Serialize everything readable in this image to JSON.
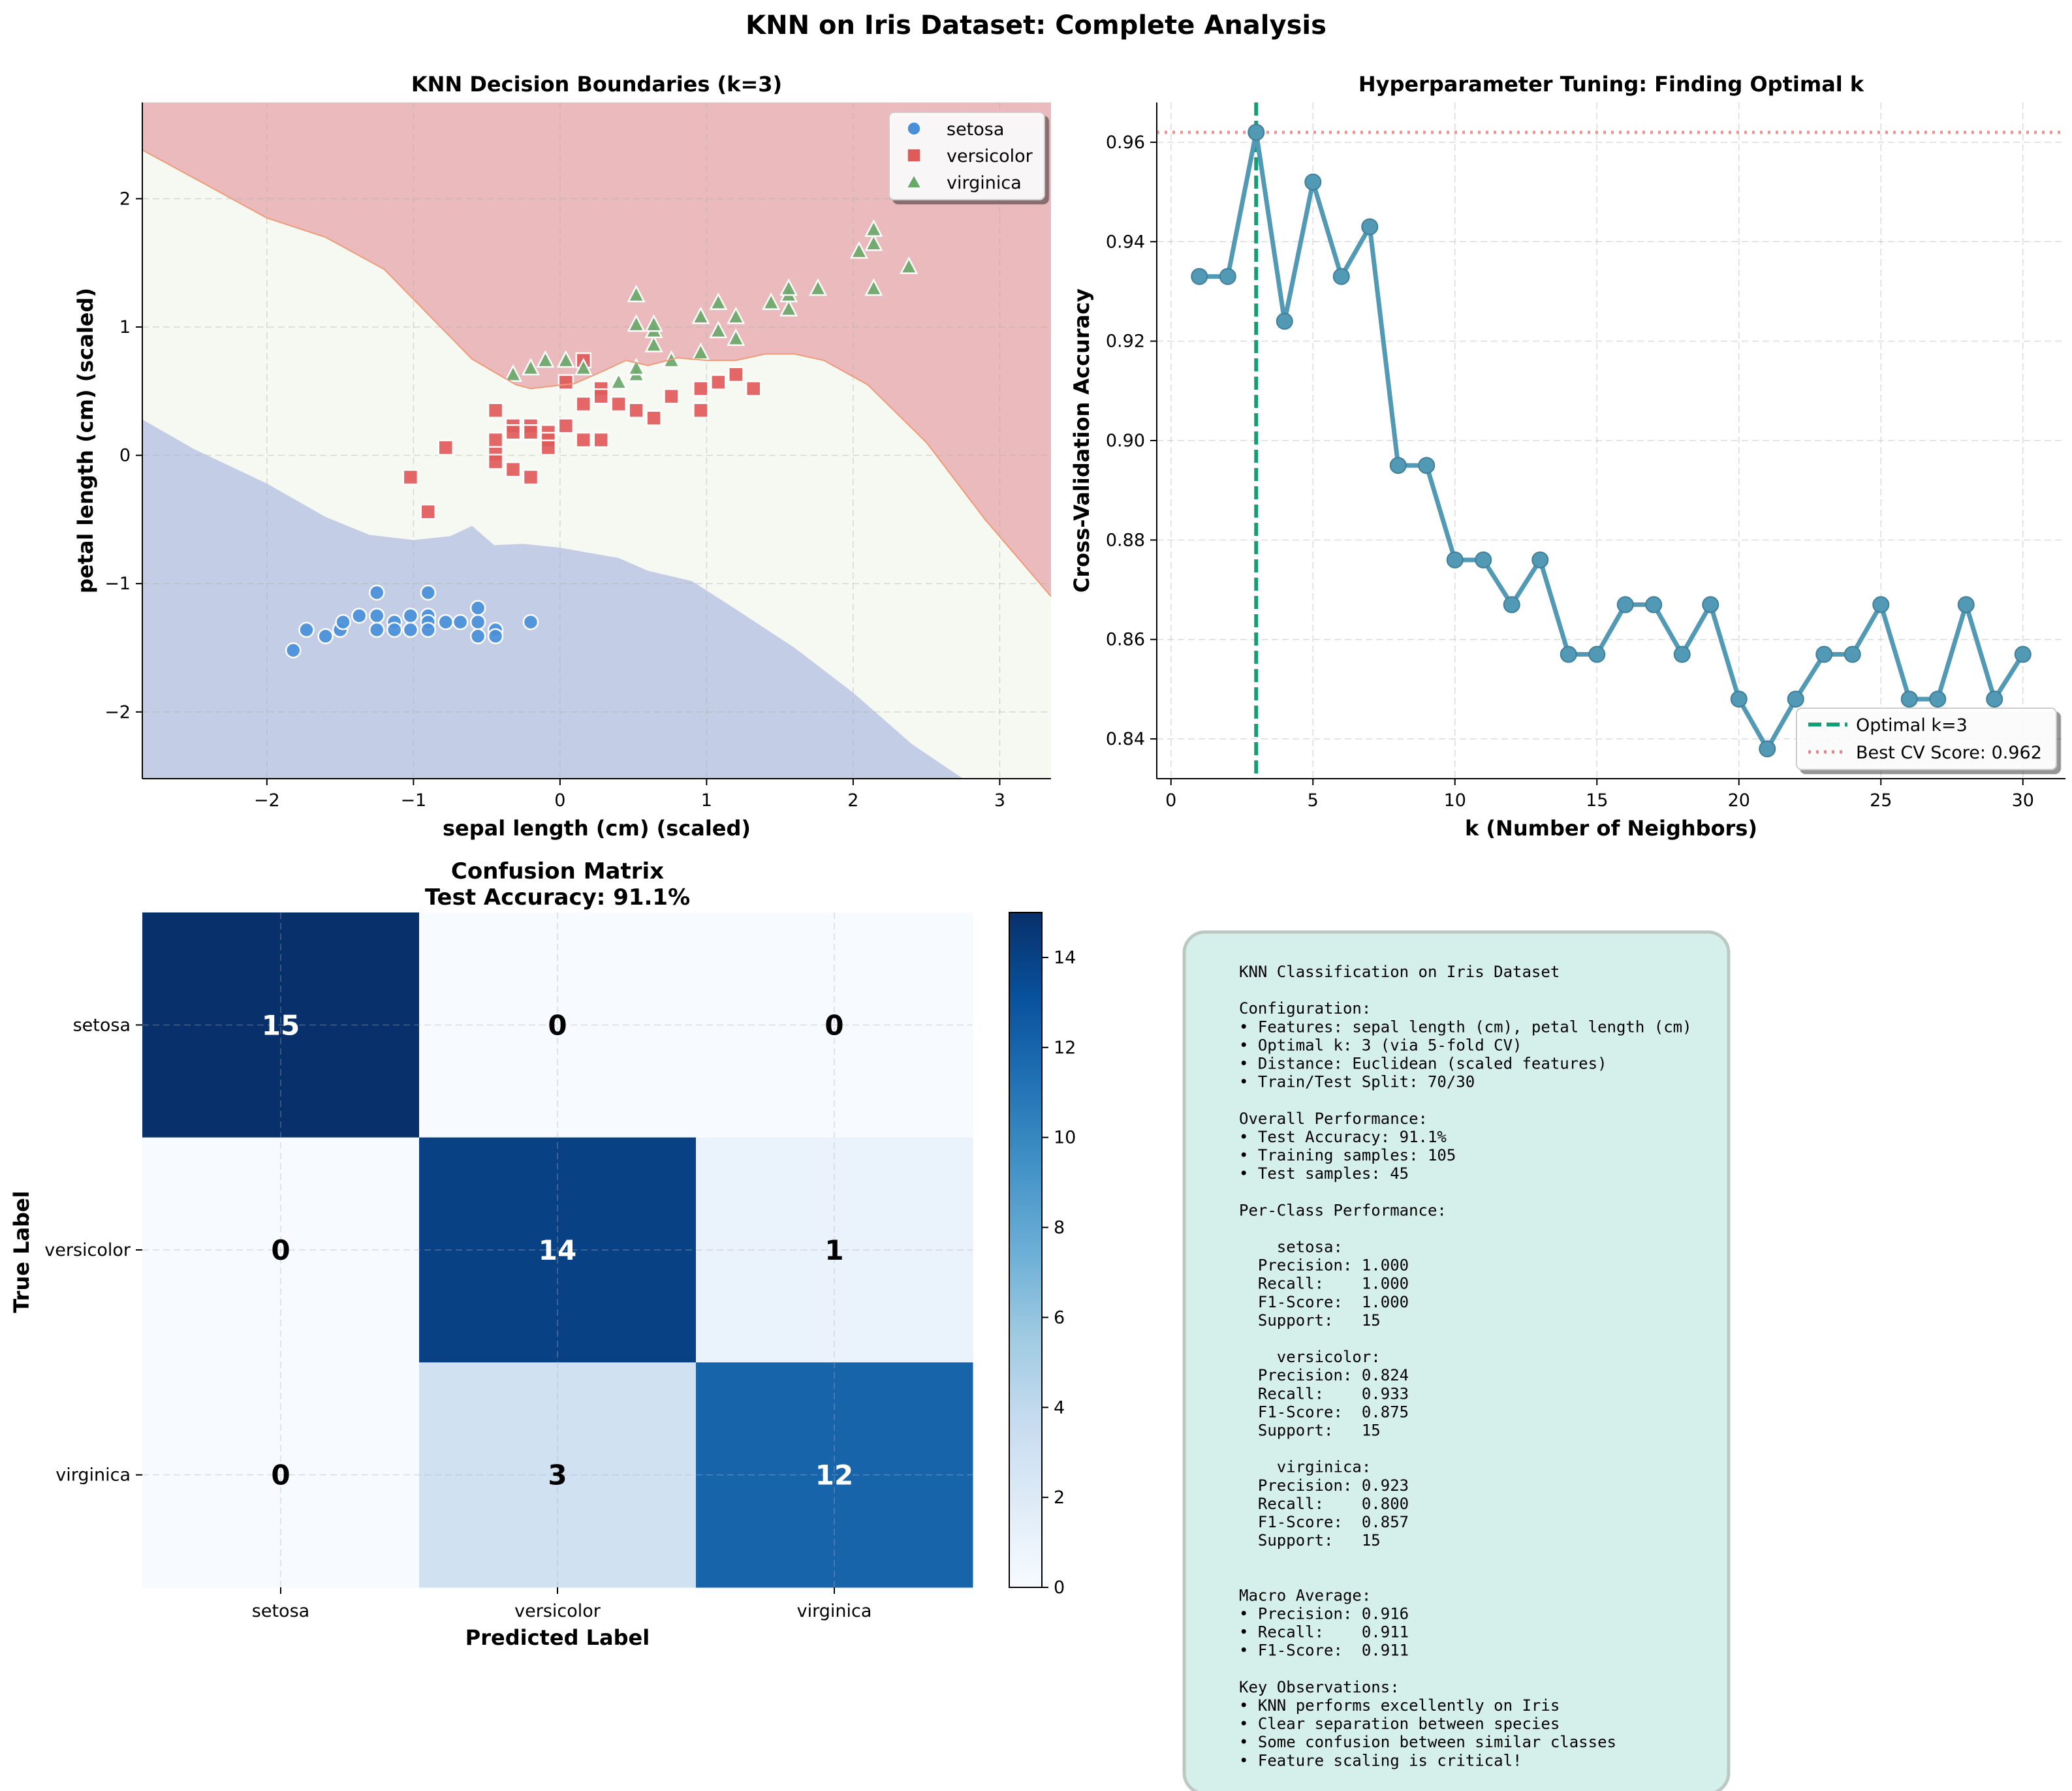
{
  "figure": {
    "title": "KNN on Iris Dataset: Complete Analysis"
  },
  "colors": {
    "setosa": "#4a90d9",
    "versicolor": "#e05a5a",
    "virginica": "#6aa86a",
    "region_setosa": "#c3cde6",
    "region_versicolor": "#f6f9f2",
    "region_virginica": "#ebbabc",
    "cv_line": "#5199b5",
    "optimal_line": "#159e75",
    "best_line": "#e58585",
    "textbox_bg": "#d5f0ea",
    "textbox_border": "#bcc9c3"
  },
  "chart_data": [
    {
      "id": "decision_boundaries",
      "type": "scatter",
      "title": "KNN Decision Boundaries (k=3)",
      "xlabel": "sepal length (cm) (scaled)",
      "ylabel": "petal length (cm) (scaled)",
      "xlim": [
        -2.85,
        3.35
      ],
      "ylim": [
        -2.52,
        2.75
      ],
      "xticks": [
        -2,
        -1,
        0,
        1,
        2,
        3
      ],
      "yticks": [
        -2,
        -1,
        0,
        1,
        2
      ],
      "grid": true,
      "legend_placement": "top-right",
      "regions": {
        "setosa_upper_boundary": [
          [
            -2.85,
            0.28
          ],
          [
            -2.5,
            0.05
          ],
          [
            -2.0,
            -0.22
          ],
          [
            -1.6,
            -0.48
          ],
          [
            -1.3,
            -0.62
          ],
          [
            -1.0,
            -0.66
          ],
          [
            -0.75,
            -0.63
          ],
          [
            -0.6,
            -0.55
          ],
          [
            -0.45,
            -0.7
          ],
          [
            -0.25,
            -0.69
          ],
          [
            0.0,
            -0.72
          ],
          [
            0.4,
            -0.8
          ],
          [
            0.6,
            -0.9
          ],
          [
            0.9,
            -0.98
          ],
          [
            1.2,
            -1.2
          ],
          [
            1.6,
            -1.5
          ],
          [
            2.0,
            -1.85
          ],
          [
            2.4,
            -2.25
          ],
          [
            2.75,
            -2.52
          ]
        ],
        "virginica_lower_boundary": [
          [
            -2.85,
            2.38
          ],
          [
            -2.4,
            2.1
          ],
          [
            -2.0,
            1.85
          ],
          [
            -1.6,
            1.7
          ],
          [
            -1.2,
            1.45
          ],
          [
            -0.9,
            1.1
          ],
          [
            -0.6,
            0.75
          ],
          [
            -0.3,
            0.55
          ],
          [
            -0.2,
            0.52
          ],
          [
            0.1,
            0.56
          ],
          [
            0.3,
            0.66
          ],
          [
            0.45,
            0.74
          ],
          [
            0.6,
            0.7
          ],
          [
            0.8,
            0.76
          ],
          [
            1.0,
            0.74
          ],
          [
            1.2,
            0.74
          ],
          [
            1.4,
            0.79
          ],
          [
            1.6,
            0.79
          ],
          [
            1.8,
            0.74
          ],
          [
            2.1,
            0.55
          ],
          [
            2.5,
            0.1
          ],
          [
            2.9,
            -0.5
          ],
          [
            3.35,
            -1.1
          ]
        ]
      },
      "series": [
        {
          "name": "setosa",
          "marker": "circle",
          "points": [
            [
              -1.82,
              -1.52
            ],
            [
              -1.73,
              -1.36
            ],
            [
              -1.6,
              -1.41
            ],
            [
              -1.5,
              -1.36
            ],
            [
              -1.48,
              -1.3
            ],
            [
              -1.37,
              -1.25
            ],
            [
              -1.25,
              -1.07
            ],
            [
              -1.25,
              -1.25
            ],
            [
              -1.25,
              -1.36
            ],
            [
              -1.13,
              -1.3
            ],
            [
              -1.13,
              -1.36
            ],
            [
              -1.02,
              -1.25
            ],
            [
              -1.02,
              -1.36
            ],
            [
              -0.9,
              -1.07
            ],
            [
              -0.9,
              -1.25
            ],
            [
              -0.9,
              -1.3
            ],
            [
              -0.9,
              -1.36
            ],
            [
              -0.78,
              -1.3
            ],
            [
              -0.68,
              -1.3
            ],
            [
              -0.56,
              -1.19
            ],
            [
              -0.56,
              -1.3
            ],
            [
              -0.56,
              -1.41
            ],
            [
              -0.44,
              -1.36
            ],
            [
              -0.44,
              -1.41
            ],
            [
              -0.2,
              -1.3
            ]
          ]
        },
        {
          "name": "versicolor",
          "marker": "square",
          "points": [
            [
              -1.02,
              -0.17
            ],
            [
              -0.9,
              -0.44
            ],
            [
              -0.78,
              0.06
            ],
            [
              -0.44,
              0.35
            ],
            [
              -0.44,
              0.12
            ],
            [
              -0.44,
              0.01
            ],
            [
              -0.44,
              -0.05
            ],
            [
              -0.32,
              0.23
            ],
            [
              -0.32,
              0.18
            ],
            [
              -0.32,
              -0.11
            ],
            [
              -0.2,
              0.23
            ],
            [
              -0.2,
              0.18
            ],
            [
              -0.2,
              -0.17
            ],
            [
              -0.08,
              0.18
            ],
            [
              -0.08,
              0.12
            ],
            [
              -0.08,
              0.06
            ],
            [
              0.04,
              0.57
            ],
            [
              0.04,
              0.23
            ],
            [
              0.16,
              0.74
            ],
            [
              0.16,
              0.4
            ],
            [
              0.16,
              0.12
            ],
            [
              0.28,
              0.52
            ],
            [
              0.28,
              0.46
            ],
            [
              0.28,
              0.12
            ],
            [
              0.4,
              0.4
            ],
            [
              0.52,
              0.35
            ],
            [
              0.64,
              0.29
            ],
            [
              0.76,
              0.46
            ],
            [
              0.96,
              0.52
            ],
            [
              0.96,
              0.35
            ],
            [
              1.08,
              0.57
            ],
            [
              1.2,
              0.63
            ],
            [
              1.32,
              0.52
            ]
          ]
        },
        {
          "name": "virginica",
          "marker": "triangle",
          "points": [
            [
              -0.32,
              0.63
            ],
            [
              -0.2,
              0.68
            ],
            [
              -0.1,
              0.74
            ],
            [
              0.04,
              0.74
            ],
            [
              0.16,
              0.68
            ],
            [
              0.4,
              0.57
            ],
            [
              0.52,
              0.63
            ],
            [
              0.52,
              0.68
            ],
            [
              0.52,
              1.02
            ],
            [
              0.52,
              1.25
            ],
            [
              0.64,
              0.86
            ],
            [
              0.64,
              0.97
            ],
            [
              0.64,
              1.02
            ],
            [
              0.76,
              0.74
            ],
            [
              0.96,
              0.8
            ],
            [
              0.96,
              1.08
            ],
            [
              1.08,
              0.97
            ],
            [
              1.08,
              1.19
            ],
            [
              1.2,
              0.91
            ],
            [
              1.2,
              1.08
            ],
            [
              1.44,
              1.19
            ],
            [
              1.56,
              1.14
            ],
            [
              1.56,
              1.25
            ],
            [
              1.56,
              1.3
            ],
            [
              1.76,
              1.3
            ],
            [
              2.04,
              1.59
            ],
            [
              2.14,
              1.3
            ],
            [
              2.14,
              1.65
            ],
            [
              2.14,
              1.76
            ],
            [
              2.38,
              1.47
            ]
          ]
        }
      ]
    },
    {
      "id": "cv_tuning",
      "type": "line",
      "title": "Hyperparameter Tuning: Finding Optimal k",
      "xlabel": "k (Number of Neighbors)",
      "ylabel": "Cross-Validation Accuracy",
      "xlim": [
        -0.5,
        31.5
      ],
      "ylim": [
        0.832,
        0.968
      ],
      "xticks": [
        0,
        5,
        10,
        15,
        20,
        25,
        30
      ],
      "yticks": [
        0.84,
        0.86,
        0.88,
        0.9,
        0.92,
        0.94,
        0.96
      ],
      "yticklabels": [
        "0.84",
        "0.86",
        "0.88",
        "0.90",
        "0.92",
        "0.94",
        "0.96"
      ],
      "grid": true,
      "legend_placement": "bottom-right",
      "x": [
        1,
        2,
        3,
        4,
        5,
        6,
        7,
        8,
        9,
        10,
        11,
        12,
        13,
        14,
        15,
        16,
        17,
        18,
        19,
        20,
        21,
        22,
        23,
        24,
        25,
        26,
        27,
        28,
        29,
        30
      ],
      "y": [
        0.933,
        0.933,
        0.962,
        0.924,
        0.952,
        0.933,
        0.943,
        0.895,
        0.895,
        0.876,
        0.876,
        0.867,
        0.876,
        0.857,
        0.857,
        0.867,
        0.867,
        0.857,
        0.867,
        0.848,
        0.838,
        0.848,
        0.857,
        0.857,
        0.867,
        0.848,
        0.848,
        0.867,
        0.848,
        0.857
      ],
      "optimal_k": 3,
      "best_score": 0.962,
      "legend": [
        "Optimal k=3",
        "Best CV Score: 0.962"
      ]
    },
    {
      "id": "confusion_matrix",
      "type": "heatmap",
      "title": "Confusion Matrix",
      "subtitle": "Test Accuracy: 91.1%",
      "xlabel": "Predicted Label",
      "ylabel": "True Label",
      "labels": [
        "setosa",
        "versicolor",
        "virginica"
      ],
      "matrix": [
        [
          15,
          0,
          0
        ],
        [
          0,
          14,
          1
        ],
        [
          0,
          3,
          12
        ]
      ],
      "colorbar_range": [
        0,
        15
      ],
      "colorbar_ticks": [
        0,
        2,
        4,
        6,
        8,
        10,
        12,
        14
      ]
    }
  ],
  "summary_box": {
    "lines": [
      "KNN Classification on Iris Dataset",
      "",
      "Configuration:",
      "• Features: sepal length (cm), petal length (cm)",
      "• Optimal k: 3 (via 5-fold CV)",
      "• Distance: Euclidean (scaled features)",
      "• Train/Test Split: 70/30",
      "",
      "Overall Performance:",
      "• Test Accuracy: 91.1%",
      "• Training samples: 105",
      "• Test samples: 45",
      "",
      "Per-Class Performance:",
      "",
      "    setosa:",
      "  Precision: 1.000",
      "  Recall:    1.000",
      "  F1-Score:  1.000",
      "  Support:   15",
      "",
      "    versicolor:",
      "  Precision: 0.824",
      "  Recall:    0.933",
      "  F1-Score:  0.875",
      "  Support:   15",
      "",
      "    virginica:",
      "  Precision: 0.923",
      "  Recall:    0.800",
      "  F1-Score:  0.857",
      "  Support:   15",
      "",
      "",
      "Macro Average:",
      "• Precision: 0.916",
      "• Recall:    0.911",
      "• F1-Score:  0.911",
      "",
      "Key Observations:",
      "• KNN performs excellently on Iris",
      "• Clear separation between species",
      "• Some confusion between similar classes",
      "• Feature scaling is critical!"
    ]
  }
}
